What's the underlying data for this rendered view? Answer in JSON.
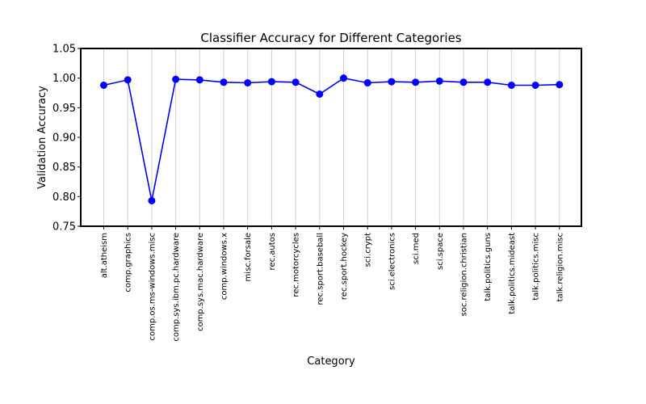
{
  "chart_data": {
    "type": "line",
    "title": "Classifier Accuracy for Different Categories",
    "xlabel": "Category",
    "ylabel": "Validation Accuracy",
    "ylim": [
      0.75,
      1.05
    ],
    "yticks": [
      "0.75",
      "0.80",
      "0.85",
      "0.90",
      "0.95",
      "1.00",
      "1.05"
    ],
    "grid": "vertical",
    "legend": "none",
    "categories": [
      "alt.atheism",
      "comp.graphics",
      "comp.os.ms-windows.misc",
      "comp.sys.ibm.pc.hardware",
      "comp.sys.mac.hardware",
      "comp.windows.x",
      "misc.forsale",
      "rec.autos",
      "rec.motorcycles",
      "rec.sport.baseball",
      "rec.sport.hockey",
      "sci.crypt",
      "sci.electronics",
      "sci.med",
      "sci.space",
      "soc.religion.christian",
      "talk.politics.guns",
      "talk.politics.mideast",
      "talk.politics.misc",
      "talk.religion.misc"
    ],
    "series": [
      {
        "color": "#0000ff",
        "values": [
          0.988,
          0.997,
          0.793,
          0.998,
          0.997,
          0.993,
          0.992,
          0.994,
          0.993,
          0.973,
          1.0,
          0.992,
          0.994,
          0.993,
          0.995,
          0.993,
          0.993,
          0.988,
          0.988,
          0.989
        ]
      }
    ]
  }
}
